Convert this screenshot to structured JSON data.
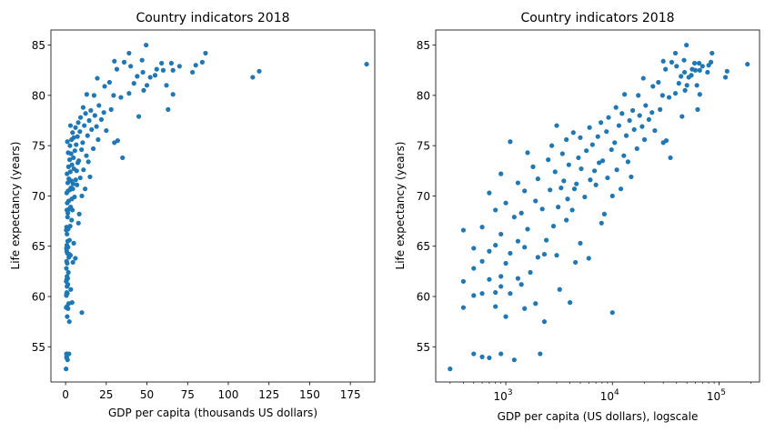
{
  "chart_data": [
    {
      "type": "scatter",
      "title": "Country indicators 2018",
      "xlabel": "GDP per capita (thousands US dollars)",
      "ylabel": "Life expectancy (years)",
      "xlim": [
        -9,
        190
      ],
      "ylim": [
        51.5,
        86.5
      ],
      "xticks": [
        0,
        25,
        50,
        75,
        100,
        125,
        150,
        175
      ],
      "yticks": [
        55,
        60,
        65,
        70,
        75,
        80,
        85
      ],
      "grid": false,
      "color": "#1f77b4",
      "points": [
        [
          0.3,
          52.8
        ],
        [
          0.5,
          54.3
        ],
        [
          0.7,
          53.9
        ],
        [
          0.9,
          54.3
        ],
        [
          0.6,
          54.0
        ],
        [
          1.2,
          53.7
        ],
        [
          2.1,
          54.3
        ],
        [
          2.3,
          57.5
        ],
        [
          1.0,
          58.0
        ],
        [
          1.5,
          58.8
        ],
        [
          0.4,
          58.9
        ],
        [
          0.8,
          59.0
        ],
        [
          1.9,
          59.3
        ],
        [
          4.0,
          59.4
        ],
        [
          10.0,
          58.4
        ],
        [
          0.5,
          60.1
        ],
        [
          0.6,
          60.3
        ],
        [
          0.8,
          60.4
        ],
        [
          1.1,
          60.3
        ],
        [
          0.9,
          61.0
        ],
        [
          1.4,
          61.2
        ],
        [
          0.7,
          61.7
        ],
        [
          1.3,
          61.8
        ],
        [
          0.9,
          62.0
        ],
        [
          0.4,
          61.5
        ],
        [
          1.7,
          62.4
        ],
        [
          3.2,
          60.7
        ],
        [
          0.5,
          62.8
        ],
        [
          0.6,
          63.5
        ],
        [
          1.0,
          63.3
        ],
        [
          2.0,
          63.9
        ],
        [
          3.0,
          64.1
        ],
        [
          2.3,
          64.2
        ],
        [
          4.5,
          63.4
        ],
        [
          6.0,
          63.8
        ],
        [
          1.1,
          64.3
        ],
        [
          0.7,
          64.5
        ],
        [
          0.5,
          64.8
        ],
        [
          0.8,
          65.1
        ],
        [
          1.5,
          64.9
        ],
        [
          1.3,
          65.5
        ],
        [
          2.4,
          65.6
        ],
        [
          5.0,
          65.3
        ],
        [
          0.4,
          66.6
        ],
        [
          0.6,
          66.9
        ],
        [
          0.9,
          66.2
        ],
        [
          1.6,
          66.7
        ],
        [
          2.8,
          67.0
        ],
        [
          3.7,
          67.6
        ],
        [
          7.9,
          67.3
        ],
        [
          1.2,
          67.9
        ],
        [
          1.4,
          68.3
        ],
        [
          0.8,
          68.6
        ],
        [
          2.2,
          68.7
        ],
        [
          3.1,
          68.9
        ],
        [
          4.2,
          68.6
        ],
        [
          8.4,
          68.2
        ],
        [
          1.0,
          69.3
        ],
        [
          1.9,
          69.5
        ],
        [
          3.8,
          69.7
        ],
        [
          5.5,
          69.9
        ],
        [
          10.0,
          70.0
        ],
        [
          0.7,
          70.3
        ],
        [
          1.5,
          70.5
        ],
        [
          2.6,
          70.6
        ],
        [
          3.3,
          70.8
        ],
        [
          4.4,
          70.7
        ],
        [
          7.0,
          71.1
        ],
        [
          12.0,
          70.7
        ],
        [
          1.3,
          71.3
        ],
        [
          2.0,
          71.7
        ],
        [
          3.5,
          71.5
        ],
        [
          4.6,
          71.2
        ],
        [
          6.2,
          71.6
        ],
        [
          9.0,
          71.8
        ],
        [
          15.0,
          71.9
        ],
        [
          0.9,
          72.2
        ],
        [
          2.9,
          72.4
        ],
        [
          5.1,
          72.7
        ],
        [
          6.8,
          72.5
        ],
        [
          11.0,
          72.6
        ],
        [
          1.8,
          72.9
        ],
        [
          3.9,
          73.1
        ],
        [
          7.5,
          73.3
        ],
        [
          14.0,
          73.4
        ],
        [
          2.5,
          73.6
        ],
        [
          4.8,
          73.8
        ],
        [
          8.1,
          73.5
        ],
        [
          12.8,
          74.0
        ],
        [
          35.0,
          73.8
        ],
        [
          1.6,
          74.3
        ],
        [
          3.4,
          74.2
        ],
        [
          5.7,
          74.5
        ],
        [
          9.8,
          74.6
        ],
        [
          17.0,
          74.7
        ],
        [
          30.0,
          75.3
        ],
        [
          2.7,
          75.0
        ],
        [
          6.5,
          75.1
        ],
        [
          10.5,
          75.3
        ],
        [
          20.0,
          75.6
        ],
        [
          3.7,
          75.6
        ],
        [
          5.0,
          75.8
        ],
        [
          7.3,
          75.9
        ],
        [
          13.5,
          76.0
        ],
        [
          32.0,
          75.5
        ],
        [
          1.1,
          75.4
        ],
        [
          4.3,
          76.3
        ],
        [
          8.8,
          76.4
        ],
        [
          16.0,
          76.6
        ],
        [
          25.0,
          76.5
        ],
        [
          6.1,
          76.8
        ],
        [
          11.5,
          77.0
        ],
        [
          19.0,
          76.9
        ],
        [
          3.0,
          77.0
        ],
        [
          7.8,
          77.3
        ],
        [
          14.5,
          77.5
        ],
        [
          22.0,
          77.6
        ],
        [
          9.2,
          77.8
        ],
        [
          18.0,
          78.0
        ],
        [
          45.0,
          77.9
        ],
        [
          12.3,
          78.2
        ],
        [
          23.5,
          78.3
        ],
        [
          15.5,
          78.5
        ],
        [
          28.0,
          78.6
        ],
        [
          10.8,
          78.8
        ],
        [
          20.5,
          79.0
        ],
        [
          63.0,
          78.6
        ],
        [
          34.0,
          79.8
        ],
        [
          29.5,
          80.0
        ],
        [
          17.5,
          80.0
        ],
        [
          13.0,
          80.1
        ],
        [
          39.0,
          80.2
        ],
        [
          66.0,
          80.1
        ],
        [
          48.0,
          80.5
        ],
        [
          24.0,
          80.9
        ],
        [
          27.0,
          81.3
        ],
        [
          42.0,
          81.2
        ],
        [
          50.0,
          81.0
        ],
        [
          62.0,
          81.0
        ],
        [
          19.5,
          81.7
        ],
        [
          44.0,
          81.9
        ],
        [
          52.0,
          81.8
        ],
        [
          115.0,
          81.8
        ],
        [
          55.0,
          82.0
        ],
        [
          47.5,
          82.3
        ],
        [
          60.0,
          82.5
        ],
        [
          78.0,
          82.3
        ],
        [
          31.5,
          82.6
        ],
        [
          56.0,
          82.6
        ],
        [
          66.0,
          82.5
        ],
        [
          119.0,
          82.4
        ],
        [
          40.0,
          82.9
        ],
        [
          70.0,
          82.9
        ],
        [
          80.0,
          83.0
        ],
        [
          185.0,
          83.1
        ],
        [
          36.0,
          83.3
        ],
        [
          59.0,
          83.2
        ],
        [
          84.0,
          83.3
        ],
        [
          30.0,
          83.4
        ],
        [
          47.0,
          83.5
        ],
        [
          65.0,
          83.2
        ],
        [
          39.0,
          84.2
        ],
        [
          86.0,
          84.2
        ],
        [
          49.5,
          85.0
        ]
      ]
    },
    {
      "type": "scatter",
      "title": "Country indicators 2018",
      "xlabel": "GDP per capita (US dollars), logscale",
      "ylabel": "Life expectancy (years)",
      "xscale": "log",
      "xlim": [
        220,
        240000
      ],
      "ylim": [
        51.5,
        86.5
      ],
      "xticks": [
        1000,
        10000,
        100000
      ],
      "xtick_labels": [
        [
          "10",
          "3"
        ],
        [
          "10",
          "4"
        ],
        [
          "10",
          "5"
        ]
      ],
      "yticks": [
        55,
        60,
        65,
        70,
        75,
        80,
        85
      ],
      "grid": false,
      "color": "#1f77b4"
    }
  ]
}
